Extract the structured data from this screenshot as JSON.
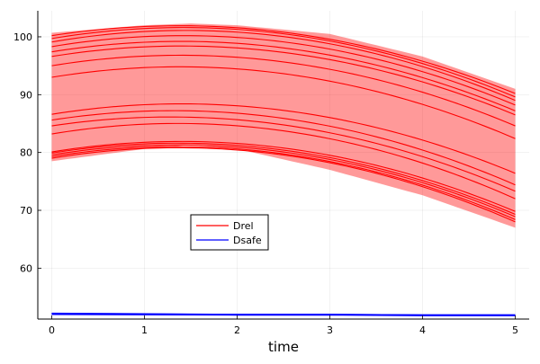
{
  "chart_data": {
    "type": "line",
    "title": "",
    "xlabel": "time",
    "ylabel": "",
    "xlim": [
      -0.15,
      5.15
    ],
    "ylim": [
      51.2,
      104.5
    ],
    "xticks": [
      0,
      1,
      2,
      3,
      4,
      5
    ],
    "yticks": [
      60,
      70,
      80,
      90,
      100
    ],
    "grid": true,
    "legend": {
      "placement": "center-left",
      "entries": [
        "Drel",
        "Dsafe"
      ]
    },
    "colors": {
      "drel_line": "#ff0000",
      "drel_band": "#ff0000",
      "dsafe": "#0000ff"
    },
    "band": {
      "series": "Drel",
      "lower": [
        [
          0,
          78.5
        ],
        [
          1,
          80.6
        ],
        [
          1.5,
          81.3
        ],
        [
          2,
          80.6
        ],
        [
          3,
          77.0
        ],
        [
          4,
          72.6
        ],
        [
          5,
          67.0
        ]
      ],
      "upper": [
        [
          0,
          100.7
        ],
        [
          1,
          102.0
        ],
        [
          1.5,
          102.3
        ],
        [
          2,
          102.0
        ],
        [
          3,
          100.5
        ],
        [
          4,
          96.6
        ],
        [
          5,
          91.0
        ]
      ]
    },
    "series": [
      {
        "name": "Drel",
        "kind": "family",
        "curves": [
          {
            "y0": 100.2,
            "vpeak": 101.9,
            "y5": 90.2
          },
          {
            "y0": 99.7,
            "vpeak": 101.6,
            "y5": 89.6
          },
          {
            "y0": 99.1,
            "vpeak": 101.1,
            "y5": 89.0
          },
          {
            "y0": 98.3,
            "vpeak": 100.2,
            "y5": 88.2
          },
          {
            "y0": 97.4,
            "vpeak": 99.2,
            "y5": 87.2
          },
          {
            "y0": 96.6,
            "vpeak": 98.4,
            "y5": 86.5
          },
          {
            "y0": 95.0,
            "vpeak": 96.8,
            "y5": 84.6
          },
          {
            "y0": 93.0,
            "vpeak": 94.8,
            "y5": 82.4
          },
          {
            "y0": 86.6,
            "vpeak": 88.4,
            "y5": 76.4
          },
          {
            "y0": 85.6,
            "vpeak": 87.2,
            "y5": 74.4
          },
          {
            "y0": 84.6,
            "vpeak": 86.1,
            "y5": 73.3
          },
          {
            "y0": 83.2,
            "vpeak": 85.0,
            "y5": 72.0
          },
          {
            "y0": 80.1,
            "vpeak": 81.9,
            "y5": 69.8
          },
          {
            "y0": 79.9,
            "vpeak": 81.6,
            "y5": 69.3
          },
          {
            "y0": 79.6,
            "vpeak": 81.3,
            "y5": 68.9
          },
          {
            "y0": 79.3,
            "vpeak": 81.0,
            "y5": 68.4
          },
          {
            "y0": 79.0,
            "vpeak": 80.8,
            "y5": 68.0
          }
        ]
      },
      {
        "name": "Dsafe",
        "kind": "lines",
        "lines": [
          [
            [
              0,
              52.1
            ],
            [
              2,
              52.0
            ],
            [
              3,
              52.0
            ],
            [
              4,
              51.9
            ],
            [
              5,
              51.9
            ]
          ],
          [
            [
              0,
              52.2
            ],
            [
              2,
              52.0
            ],
            [
              3,
              52.0
            ],
            [
              4,
              51.9
            ],
            [
              5,
              51.9
            ]
          ],
          [
            [
              0,
              52.0
            ],
            [
              2,
              51.9
            ],
            [
              3,
              51.9
            ],
            [
              4,
              51.8
            ],
            [
              5,
              51.8
            ]
          ]
        ]
      }
    ]
  }
}
